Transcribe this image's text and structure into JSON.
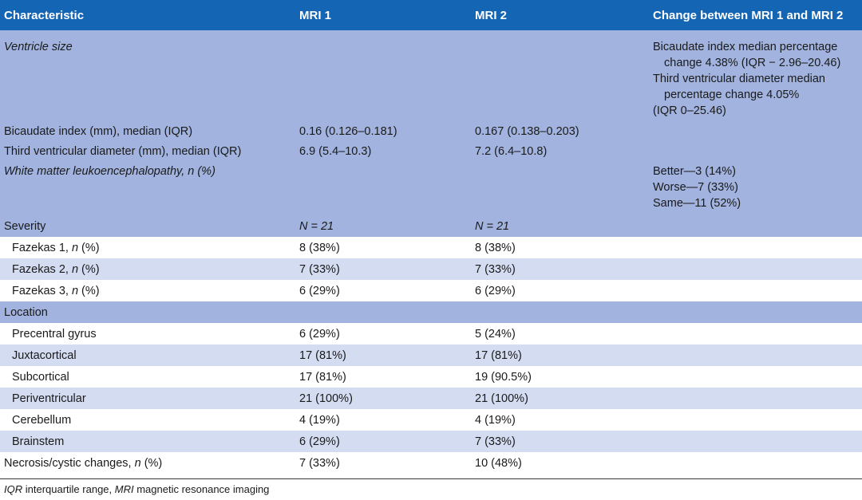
{
  "header": {
    "c1": "Characteristic",
    "c2": "MRI 1",
    "c3": "MRI 2",
    "c4": "Change between MRI 1 and MRI 2"
  },
  "ventricle": {
    "label": "Ventricle size",
    "change_lines": [
      "Bicaudate index median percentage change 4.38% (IQR − 2.96–20.46)",
      "Third ventricular diameter median percentage change 4.05%",
      "(IQR 0–25.46)"
    ]
  },
  "bicaudate": {
    "label": "Bicaudate index (mm), median (IQR)",
    "mri1": "0.16 (0.126–0.181)",
    "mri2": "0.167 (0.138–0.203)"
  },
  "third": {
    "label": "Third ventricular diameter (mm), median (IQR)",
    "mri1": "6.9 (5.4–10.3)",
    "mri2": "7.2 (6.4–10.8)"
  },
  "wml": {
    "label": "White matter leukoencephalopathy, n (%)",
    "change_lines": [
      "Better—3 (14%)",
      "Worse—7 (33%)",
      "Same—11 (52%)"
    ]
  },
  "severity": {
    "label": "Severity",
    "mri1": "N = 21",
    "mri2": "N = 21"
  },
  "severity_rows": [
    {
      "label": "Fazekas 1, n (%)",
      "mri1": "8 (38%)",
      "mri2": "8 (38%)"
    },
    {
      "label": "Fazekas 2, n (%)",
      "mri1": "7 (33%)",
      "mri2": "7 (33%)"
    },
    {
      "label": "Fazekas 3, n (%)",
      "mri1": "6 (29%)",
      "mri2": "6 (29%)"
    }
  ],
  "location": {
    "label": "Location"
  },
  "location_rows": [
    {
      "label": "Precentral gyrus",
      "mri1": "6 (29%)",
      "mri2": "5 (24%)"
    },
    {
      "label": "Juxtacortical",
      "mri1": "17 (81%)",
      "mri2": "17 (81%)"
    },
    {
      "label": "Subcortical",
      "mri1": "17 (81%)",
      "mri2": "19 (90.5%)"
    },
    {
      "label": "Periventricular",
      "mri1": "21 (100%)",
      "mri2": "21 (100%)"
    },
    {
      "label": "Cerebellum",
      "mri1": "4 (19%)",
      "mri2": "4 (19%)"
    },
    {
      "label": "Brainstem",
      "mri1": "6 (29%)",
      "mri2": "7 (33%)"
    }
  ],
  "necrosis": {
    "label": "Necrosis/cystic changes, n (%)",
    "mri1": "7 (33%)",
    "mri2": "10 (48%)"
  },
  "footnote": "IQR interquartile range, MRI magnetic resonance imaging"
}
